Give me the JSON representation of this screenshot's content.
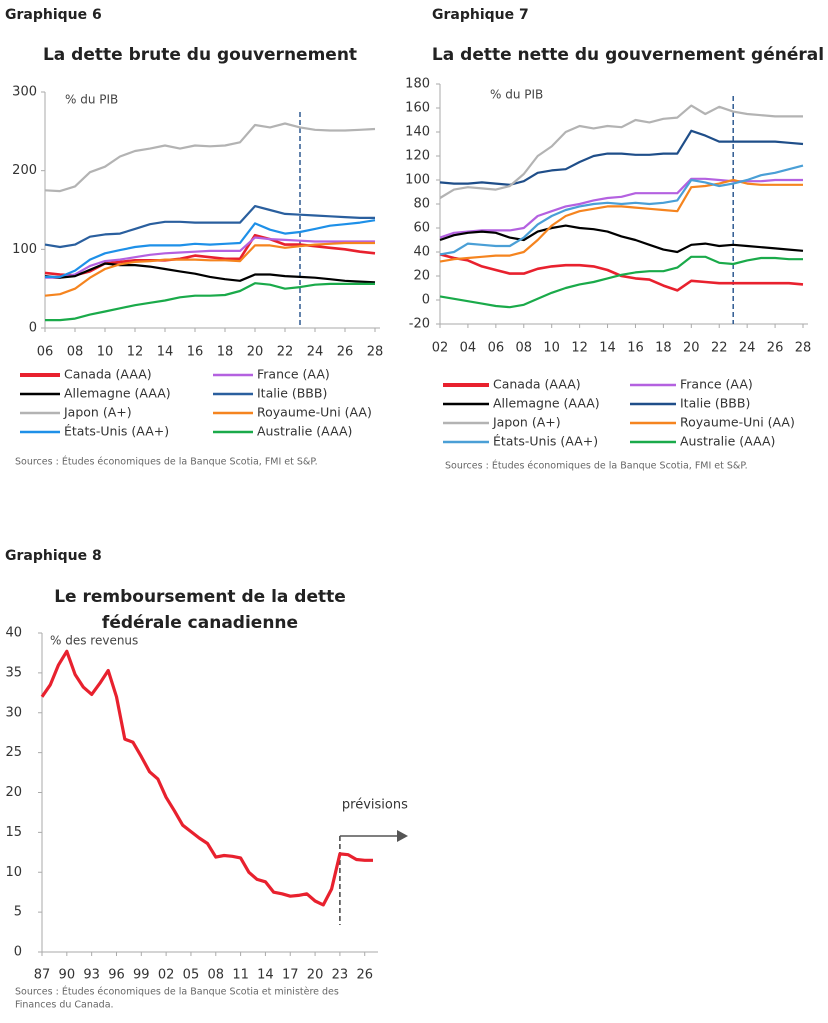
{
  "chart_data": [
    {
      "type": "line",
      "label": "Graphique 6",
      "title": [
        "La dette brute du gouvernement"
      ],
      "ylabel": "% du PIB",
      "x": [
        2006,
        2007,
        2008,
        2009,
        2010,
        2011,
        2012,
        2013,
        2014,
        2015,
        2016,
        2017,
        2018,
        2019,
        2020,
        2021,
        2022,
        2023,
        2024,
        2025,
        2026,
        2027,
        2028
      ],
      "xlim": [
        2006,
        2028
      ],
      "xticks": [
        {
          "value": 2006,
          "label": "06"
        },
        {
          "value": 2008,
          "label": "08"
        },
        {
          "value": 2010,
          "label": "10"
        },
        {
          "value": 2012,
          "label": "12"
        },
        {
          "value": 2014,
          "label": "14"
        },
        {
          "value": 2016,
          "label": "16"
        },
        {
          "value": 2018,
          "label": "18"
        },
        {
          "value": 2020,
          "label": "20"
        },
        {
          "value": 2022,
          "label": "22"
        },
        {
          "value": 2024,
          "label": "24"
        },
        {
          "value": 2026,
          "label": "26"
        },
        {
          "value": 2028,
          "label": "28"
        }
      ],
      "ylim": [
        0,
        300
      ],
      "yticks": [
        0,
        100,
        200,
        300
      ],
      "forecast_x": 2023,
      "series": [
        {
          "name": "Canada (AAA)",
          "color": "#e8212e",
          "values": [
            70,
            68,
            67,
            72,
            82,
            84,
            86,
            86,
            86,
            88,
            92,
            90,
            88,
            88,
            118,
            113,
            106,
            106,
            104,
            102,
            100,
            97,
            95
          ]
        },
        {
          "name": "France (AA)",
          "color": "#b461e0",
          "values": [
            64,
            64,
            68,
            79,
            85,
            87,
            90,
            93,
            95,
            96,
            97,
            98,
            98,
            98,
            115,
            113,
            112,
            111,
            110,
            110,
            110,
            110,
            110
          ]
        },
        {
          "name": "Allemagne (AAA)",
          "color": "#000000",
          "values": [
            66,
            64,
            66,
            74,
            82,
            80,
            80,
            78,
            75,
            72,
            69,
            65,
            62,
            60,
            68,
            68,
            66,
            65,
            64,
            62,
            60,
            59,
            58
          ]
        },
        {
          "name": "Italie (BBB)",
          "color": "#2a5f9e",
          "values": [
            106,
            103,
            106,
            116,
            119,
            120,
            126,
            132,
            135,
            135,
            134,
            134,
            134,
            134,
            155,
            150,
            145,
            144,
            143,
            142,
            141,
            140,
            140
          ]
        },
        {
          "name": "Japon (A+)",
          "color": "#b3b3b3",
          "values": [
            175,
            174,
            180,
            198,
            205,
            218,
            225,
            228,
            232,
            228,
            232,
            231,
            232,
            236,
            258,
            255,
            260,
            255,
            252,
            251,
            251,
            252,
            253
          ]
        },
        {
          "name": "Royaume-Uni (AA)",
          "color": "#f5841f",
          "values": [
            41,
            43,
            50,
            64,
            75,
            81,
            84,
            85,
            87,
            87,
            87,
            86,
            86,
            85,
            105,
            105,
            102,
            104,
            106,
            107,
            108,
            108,
            108
          ]
        },
        {
          "name": "États-Unis (AA+)",
          "color": "#1e90e8",
          "values": [
            65,
            65,
            73,
            87,
            95,
            99,
            103,
            105,
            105,
            105,
            107,
            106,
            107,
            108,
            133,
            125,
            120,
            122,
            126,
            130,
            132,
            134,
            137
          ]
        },
        {
          "name": "Australie (AAA)",
          "color": "#1aaa4a",
          "values": [
            10,
            10,
            12,
            17,
            21,
            25,
            29,
            32,
            35,
            39,
            41,
            41,
            42,
            47,
            57,
            55,
            50,
            52,
            55,
            56,
            56,
            56,
            56
          ]
        }
      ],
      "source": [
        "Sources : Études économiques de la Banque Scotia, FMI et S&P."
      ]
    },
    {
      "type": "line",
      "label": "Graphique 7",
      "title": [
        "La dette nette du gouvernement général"
      ],
      "ylabel": "% du PIB",
      "x": [
        2002,
        2003,
        2004,
        2005,
        2006,
        2007,
        2008,
        2009,
        2010,
        2011,
        2012,
        2013,
        2014,
        2015,
        2016,
        2017,
        2018,
        2019,
        2020,
        2021,
        2022,
        2023,
        2024,
        2025,
        2026,
        2027,
        2028
      ],
      "xlim": [
        2002,
        2028
      ],
      "xticks": [
        {
          "value": 2002,
          "label": "02"
        },
        {
          "value": 2004,
          "label": "04"
        },
        {
          "value": 2006,
          "label": "06"
        },
        {
          "value": 2008,
          "label": "08"
        },
        {
          "value": 2010,
          "label": "10"
        },
        {
          "value": 2012,
          "label": "12"
        },
        {
          "value": 2014,
          "label": "14"
        },
        {
          "value": 2016,
          "label": "16"
        },
        {
          "value": 2018,
          "label": "18"
        },
        {
          "value": 2020,
          "label": "20"
        },
        {
          "value": 2022,
          "label": "22"
        },
        {
          "value": 2024,
          "label": "24"
        },
        {
          "value": 2026,
          "label": "26"
        },
        {
          "value": 2028,
          "label": "28"
        }
      ],
      "ylim": [
        -20,
        180
      ],
      "yticks": [
        -20,
        0,
        20,
        40,
        60,
        80,
        100,
        120,
        140,
        160,
        180
      ],
      "forecast_x": 2023,
      "series": [
        {
          "name": "Canada (AAA)",
          "color": "#e8212e",
          "values": [
            38,
            35,
            33,
            28,
            25,
            22,
            22,
            26,
            28,
            29,
            29,
            28,
            25,
            20,
            18,
            17,
            12,
            8,
            16,
            15,
            14,
            14,
            14,
            14,
            14,
            14,
            13
          ]
        },
        {
          "name": "France (AA)",
          "color": "#b461e0",
          "values": [
            52,
            56,
            57,
            58,
            58,
            58,
            60,
            70,
            74,
            78,
            80,
            83,
            85,
            86,
            89,
            89,
            89,
            89,
            101,
            101,
            100,
            99,
            99,
            99,
            100,
            100,
            100
          ]
        },
        {
          "name": "Allemagne (AAA)",
          "color": "#000000",
          "values": [
            50,
            54,
            56,
            57,
            56,
            52,
            50,
            57,
            60,
            62,
            60,
            59,
            57,
            53,
            50,
            46,
            42,
            40,
            46,
            47,
            45,
            46,
            45,
            44,
            43,
            42,
            41
          ]
        },
        {
          "name": "Italie (BBB)",
          "color": "#1f4e89",
          "values": [
            98,
            97,
            97,
            98,
            97,
            96,
            99,
            106,
            108,
            109,
            115,
            120,
            122,
            122,
            121,
            121,
            122,
            122,
            141,
            137,
            132,
            132,
            132,
            132,
            132,
            131,
            130
          ]
        },
        {
          "name": "Japon (A+)",
          "color": "#b3b3b3",
          "values": [
            85,
            92,
            94,
            93,
            92,
            95,
            105,
            120,
            128,
            140,
            145,
            143,
            145,
            144,
            150,
            148,
            151,
            152,
            162,
            155,
            161,
            157,
            155,
            154,
            153,
            153,
            153
          ]
        },
        {
          "name": "Royaume-Uni (AA)",
          "color": "#f5841f",
          "values": [
            32,
            34,
            35,
            36,
            37,
            37,
            40,
            50,
            62,
            70,
            74,
            76,
            78,
            78,
            77,
            76,
            75,
            74,
            94,
            95,
            97,
            100,
            97,
            96,
            96,
            96,
            96
          ]
        },
        {
          "name": "États-Unis (AA+)",
          "color": "#4a9fd6",
          "values": [
            38,
            40,
            47,
            46,
            45,
            45,
            52,
            63,
            70,
            75,
            78,
            80,
            81,
            80,
            81,
            80,
            81,
            83,
            100,
            98,
            95,
            97,
            100,
            104,
            106,
            109,
            112
          ]
        },
        {
          "name": "Australie (AAA)",
          "color": "#1aaa4a",
          "values": [
            3,
            1,
            -1,
            -3,
            -5,
            -6,
            -4,
            1,
            6,
            10,
            13,
            15,
            18,
            21,
            23,
            24,
            24,
            27,
            36,
            36,
            31,
            30,
            33,
            35,
            35,
            34,
            34
          ]
        }
      ],
      "source": [
        "Sources : Études économiques de la Banque Scotia, FMI et S&P."
      ]
    },
    {
      "type": "line",
      "label": "Graphique 8",
      "title": [
        "Le remboursement de la dette",
        "fédérale canadienne"
      ],
      "ylabel": "% des revenus",
      "x": [
        1987,
        1988,
        1989,
        1990,
        1991,
        1992,
        1993,
        1994,
        1995,
        1996,
        1997,
        1998,
        1999,
        2000,
        2001,
        2002,
        2003,
        2004,
        2005,
        2006,
        2007,
        2008,
        2009,
        2010,
        2011,
        2012,
        2013,
        2014,
        2015,
        2016,
        2017,
        2018,
        2019,
        2020,
        2021,
        2022,
        2023,
        2024,
        2025,
        2026,
        2027
      ],
      "xlim": [
        1987,
        2027
      ],
      "xticks": [
        {
          "value": 1987,
          "label": "87"
        },
        {
          "value": 1990,
          "label": "90"
        },
        {
          "value": 1993,
          "label": "93"
        },
        {
          "value": 1996,
          "label": "96"
        },
        {
          "value": 1999,
          "label": "99"
        },
        {
          "value": 2002,
          "label": "02"
        },
        {
          "value": 2005,
          "label": "05"
        },
        {
          "value": 2008,
          "label": "08"
        },
        {
          "value": 2011,
          "label": "11"
        },
        {
          "value": 2014,
          "label": "14"
        },
        {
          "value": 2017,
          "label": "17"
        },
        {
          "value": 2020,
          "label": "20"
        },
        {
          "value": 2023,
          "label": "23"
        },
        {
          "value": 2026,
          "label": "26"
        }
      ],
      "ylim": [
        0,
        40
      ],
      "yticks": [
        0,
        5,
        10,
        15,
        20,
        25,
        30,
        35,
        40
      ],
      "forecast_x": 2023,
      "annotation": "prévisions",
      "series": [
        {
          "color": "#e8212e",
          "values": [
            32,
            33.5,
            36,
            37.7,
            34.8,
            33.2,
            32.3,
            33.7,
            35.3,
            32,
            26.7,
            26.3,
            24.5,
            22.6,
            21.7,
            19.4,
            17.7,
            15.9,
            15.1,
            14.3,
            13.6,
            11.9,
            12.1,
            12,
            11.8,
            10,
            9.1,
            8.8,
            7.5,
            7.3,
            7,
            7.1,
            7.3,
            6.4,
            5.9,
            7.9,
            12.3,
            12.2,
            11.6,
            11.5,
            11.5
          ]
        }
      ],
      "source": [
        "Sources : Études économiques de la Banque Scotia et ministère des",
        "Finances du Canada."
      ]
    }
  ]
}
